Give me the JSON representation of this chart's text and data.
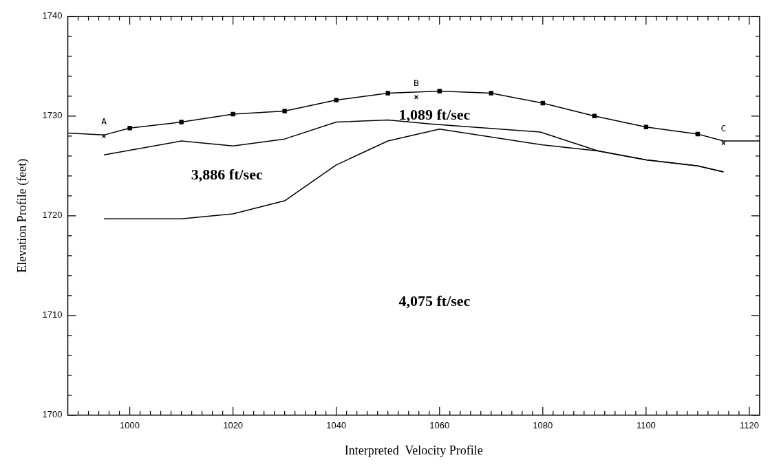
{
  "chart_data": {
    "type": "line",
    "xlabel": "Interpreted  Velocity Profile",
    "ylabel": "Elevation Profile (feet)",
    "xlim": [
      988,
      1122
    ],
    "ylim": [
      1700,
      1740
    ],
    "xticks": [
      {
        "value": 990,
        "label": null
      },
      {
        "value": 992,
        "label": null
      },
      {
        "value": 994,
        "label": null
      },
      {
        "value": 996,
        "label": null
      },
      {
        "value": 998,
        "label": null
      },
      1000,
      {
        "value": 1002,
        "label": null
      },
      {
        "value": 1004,
        "label": null
      },
      {
        "value": 1006,
        "label": null
      },
      {
        "value": 1008,
        "label": null
      },
      {
        "value": 1010,
        "label": null
      },
      {
        "value": 1012,
        "label": null
      },
      {
        "value": 1014,
        "label": null
      },
      {
        "value": 1016,
        "label": null
      },
      {
        "value": 1018,
        "label": null
      },
      1020,
      {
        "value": 1022,
        "label": null
      },
      {
        "value": 1024,
        "label": null
      },
      {
        "value": 1026,
        "label": null
      },
      {
        "value": 1028,
        "label": null
      },
      {
        "value": 1030,
        "label": null
      },
      {
        "value": 1032,
        "label": null
      },
      {
        "value": 1034,
        "label": null
      },
      {
        "value": 1036,
        "label": null
      },
      {
        "value": 1038,
        "label": null
      },
      1040,
      {
        "value": 1042,
        "label": null
      },
      {
        "value": 1044,
        "label": null
      },
      {
        "value": 1046,
        "label": null
      },
      {
        "value": 1048,
        "label": null
      },
      {
        "value": 1050,
        "label": null
      },
      {
        "value": 1052,
        "label": null
      },
      {
        "value": 1054,
        "label": null
      },
      {
        "value": 1056,
        "label": null
      },
      {
        "value": 1058,
        "label": null
      },
      1060,
      {
        "value": 1062,
        "label": null
      },
      {
        "value": 1064,
        "label": null
      },
      {
        "value": 1066,
        "label": null
      },
      {
        "value": 1068,
        "label": null
      },
      {
        "value": 1070,
        "label": null
      },
      {
        "value": 1072,
        "label": null
      },
      {
        "value": 1074,
        "label": null
      },
      {
        "value": 1076,
        "label": null
      },
      {
        "value": 1078,
        "label": null
      },
      1080,
      {
        "value": 1082,
        "label": null
      },
      {
        "value": 1084,
        "label": null
      },
      {
        "value": 1086,
        "label": null
      },
      {
        "value": 1088,
        "label": null
      },
      {
        "value": 1090,
        "label": null
      },
      {
        "value": 1092,
        "label": null
      },
      {
        "value": 1094,
        "label": null
      },
      {
        "value": 1096,
        "label": null
      },
      {
        "value": 1098,
        "label": null
      },
      1100,
      {
        "value": 1102,
        "label": null
      },
      {
        "value": 1104,
        "label": null
      },
      {
        "value": 1106,
        "label": null
      },
      {
        "value": 1108,
        "label": null
      },
      {
        "value": 1110,
        "label": null
      },
      {
        "value": 1112,
        "label": null
      },
      {
        "value": 1114,
        "label": null
      },
      {
        "value": 1116,
        "label": null
      },
      {
        "value": 1118,
        "label": null
      },
      1120
    ],
    "yticks": [
      1700,
      {
        "value": 1702,
        "label": null
      },
      {
        "value": 1704,
        "label": null
      },
      {
        "value": 1706,
        "label": null
      },
      {
        "value": 1708,
        "label": null
      },
      1710,
      {
        "value": 1712,
        "label": null
      },
      {
        "value": 1714,
        "label": null
      },
      {
        "value": 1716,
        "label": null
      },
      {
        "value": 1718,
        "label": null
      },
      1720,
      {
        "value": 1722,
        "label": null
      },
      {
        "value": 1724,
        "label": null
      },
      {
        "value": 1726,
        "label": null
      },
      {
        "value": 1728,
        "label": null
      },
      1730,
      {
        "value": 1732,
        "label": null
      },
      {
        "value": 1734,
        "label": null
      },
      {
        "value": 1736,
        "label": null
      },
      {
        "value": 1738,
        "label": null
      },
      1740
    ],
    "legend": false,
    "series": [
      {
        "marker": "none",
        "color": "#000000",
        "x": [
          988,
          995,
          1000,
          1010,
          1020,
          1030,
          1040,
          1050,
          1060,
          1070,
          1080,
          1090,
          1100,
          1110,
          1115,
          1122
        ],
        "values": [
          1728.3,
          1728.1,
          1728.8,
          1729.4,
          1730.2,
          1730.5,
          1731.6,
          1732.3,
          1732.5,
          1732.3,
          1731.3,
          1730.0,
          1728.9,
          1728.2,
          1727.5,
          1727.5
        ]
      },
      {
        "type": "scatter",
        "marker": "square",
        "color": "#000000",
        "x": [
          1000,
          1010,
          1020,
          1030,
          1040,
          1050,
          1060,
          1070,
          1080,
          1090,
          1100,
          1110
        ],
        "values": [
          1728.8,
          1729.4,
          1730.2,
          1730.5,
          1731.6,
          1732.3,
          1732.5,
          1732.3,
          1731.3,
          1730.0,
          1728.9,
          1728.2
        ]
      },
      {
        "type": "scatter",
        "marker": "cross",
        "color": "#000000",
        "x": [
          995,
          1055.5,
          1115
        ],
        "values": [
          1728.0,
          1731.9,
          1727.3
        ]
      },
      {
        "marker": "none",
        "color": "#000000",
        "x": [
          995,
          1010,
          1020,
          1030,
          1040,
          1050,
          1058.6,
          1079.5,
          1090.7,
          1100,
          1110,
          1115
        ],
        "values": [
          1726.1,
          1727.5,
          1727.0,
          1727.7,
          1729.4,
          1729.6,
          1729.2,
          1728.4,
          1726.5,
          1725.6,
          1725.0,
          1724.4
        ]
      },
      {
        "marker": "none",
        "color": "#000000",
        "x": [
          995,
          1010,
          1020,
          1030,
          1040,
          1050,
          1060,
          1080,
          1090.7,
          1100,
          1110,
          1115
        ],
        "values": [
          1719.7,
          1719.7,
          1720.2,
          1721.5,
          1725.1,
          1727.5,
          1728.7,
          1727.1,
          1726.5,
          1725.6,
          1725.0,
          1724.4
        ]
      }
    ],
    "annotations": [
      "A",
      "B",
      "C",
      "1,089 ft/sec",
      "3,886 ft/sec",
      "4,075 ft/sec"
    ]
  }
}
